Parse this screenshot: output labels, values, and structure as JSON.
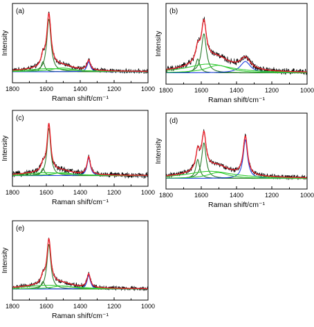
{
  "chart_data": [
    {
      "type": "line",
      "panel_label": "(a)",
      "xlabel": "Raman shift/cm⁻¹",
      "ylabel": "Intensity",
      "x_ticks": [
        1800,
        1600,
        1400,
        1200,
        1000
      ],
      "xlim": [
        1800,
        1000
      ],
      "axis_reversed": true,
      "yticks_shown": false,
      "grid": false,
      "peaks": [
        {
          "center": 1620,
          "amp": 0.16,
          "width": 12
        },
        {
          "center": 1585,
          "amp": 0.85,
          "width": 15
        },
        {
          "center": 1505,
          "amp": 0.06,
          "width": 80
        },
        {
          "center": 1350,
          "amp": 0.16,
          "width": 12
        },
        {
          "center": 1580,
          "amp": 0.05,
          "width": 150
        }
      ],
      "noise": 0.04,
      "peak_max": 0.92,
      "series": [
        {
          "role": "measured",
          "color": "#000000"
        },
        {
          "role": "fit-envelope",
          "color": "#e8202a"
        },
        {
          "role": "G-band",
          "color": "#2a7a2a"
        },
        {
          "role": "D-band",
          "color": "#1f3fe0"
        },
        {
          "role": "broad",
          "color": "#33cc33"
        }
      ]
    },
    {
      "type": "line",
      "panel_label": "(b)",
      "xlabel": "Raman shift/cm⁻¹",
      "ylabel": "Intensity",
      "x_ticks": [
        1800,
        1600,
        1400,
        1200,
        1000
      ],
      "xlim": [
        1800,
        1000
      ],
      "axis_reversed": true,
      "yticks_shown": false,
      "grid": false,
      "peaks": [
        {
          "center": 1620,
          "amp": 0.22,
          "width": 14
        },
        {
          "center": 1585,
          "amp": 0.62,
          "width": 17
        },
        {
          "center": 1505,
          "amp": 0.12,
          "width": 80
        },
        {
          "center": 1350,
          "amp": 0.18,
          "width": 35
        },
        {
          "center": 1560,
          "amp": 0.14,
          "width": 150
        }
      ],
      "noise": 0.055,
      "peak_max": 0.92,
      "series": [
        {
          "role": "measured",
          "color": "#000000"
        },
        {
          "role": "fit-envelope",
          "color": "#e8202a"
        },
        {
          "role": "G-band",
          "color": "#2a7a2a"
        },
        {
          "role": "D-band",
          "color": "#1f3fe0"
        },
        {
          "role": "broad",
          "color": "#33cc33"
        }
      ]
    },
    {
      "type": "line",
      "panel_label": "(c)",
      "xlabel": "Raman shift/cm⁻¹",
      "ylabel": "Intensity",
      "x_ticks": [
        1800,
        1600,
        1400,
        1200,
        1000
      ],
      "xlim": [
        1800,
        1000
      ],
      "axis_reversed": true,
      "yticks_shown": false,
      "grid": false,
      "peaks": [
        {
          "center": 1620,
          "amp": 0.12,
          "width": 12
        },
        {
          "center": 1585,
          "amp": 0.8,
          "width": 13
        },
        {
          "center": 1505,
          "amp": 0.05,
          "width": 70
        },
        {
          "center": 1350,
          "amp": 0.3,
          "width": 12
        },
        {
          "center": 1600,
          "amp": 0.05,
          "width": 150
        }
      ],
      "noise": 0.055,
      "peak_max": 0.92,
      "series": [
        {
          "role": "measured",
          "color": "#000000"
        },
        {
          "role": "fit-envelope",
          "color": "#e8202a"
        },
        {
          "role": "G-band",
          "color": "#2a7a2a"
        },
        {
          "role": "D-band",
          "color": "#1f3fe0"
        },
        {
          "role": "broad",
          "color": "#33cc33"
        }
      ]
    },
    {
      "type": "line",
      "panel_label": "(d)",
      "xlabel": "Raman shift/cm⁻¹",
      "ylabel": "Intensity",
      "x_ticks": [
        1800,
        1600,
        1400,
        1200,
        1000
      ],
      "xlim": [
        1800,
        1000
      ],
      "axis_reversed": true,
      "yticks_shown": false,
      "grid": false,
      "peaks": [
        {
          "center": 1620,
          "amp": 0.32,
          "width": 13
        },
        {
          "center": 1585,
          "amp": 0.6,
          "width": 15
        },
        {
          "center": 1505,
          "amp": 0.1,
          "width": 70
        },
        {
          "center": 1350,
          "amp": 0.65,
          "width": 15
        },
        {
          "center": 1550,
          "amp": 0.12,
          "width": 160
        }
      ],
      "noise": 0.045,
      "peak_max": 0.92,
      "series": [
        {
          "role": "measured",
          "color": "#000000"
        },
        {
          "role": "fit-envelope",
          "color": "#e8202a"
        },
        {
          "role": "G-band",
          "color": "#2a7a2a"
        },
        {
          "role": "D-band",
          "color": "#1f3fe0"
        },
        {
          "role": "broad",
          "color": "#33cc33"
        }
      ]
    },
    {
      "type": "line",
      "panel_label": "(e)",
      "xlabel": "Raman shift/cm⁻¹",
      "ylabel": "Intensity",
      "x_ticks": [
        1800,
        1600,
        1400,
        1200,
        1000
      ],
      "xlim": [
        1800,
        1000
      ],
      "axis_reversed": true,
      "yticks_shown": false,
      "grid": false,
      "peaks": [
        {
          "center": 1620,
          "amp": 0.12,
          "width": 12
        },
        {
          "center": 1585,
          "amp": 0.72,
          "width": 14
        },
        {
          "center": 1505,
          "amp": 0.05,
          "width": 70
        },
        {
          "center": 1350,
          "amp": 0.22,
          "width": 12
        },
        {
          "center": 1590,
          "amp": 0.06,
          "width": 160
        }
      ],
      "noise": 0.04,
      "peak_max": 0.92,
      "series": [
        {
          "role": "measured",
          "color": "#000000"
        },
        {
          "role": "fit-envelope",
          "color": "#e8202a"
        },
        {
          "role": "G-band",
          "color": "#2a7a2a"
        },
        {
          "role": "D-band",
          "color": "#1f3fe0"
        },
        {
          "role": "broad",
          "color": "#33cc33"
        }
      ]
    }
  ]
}
